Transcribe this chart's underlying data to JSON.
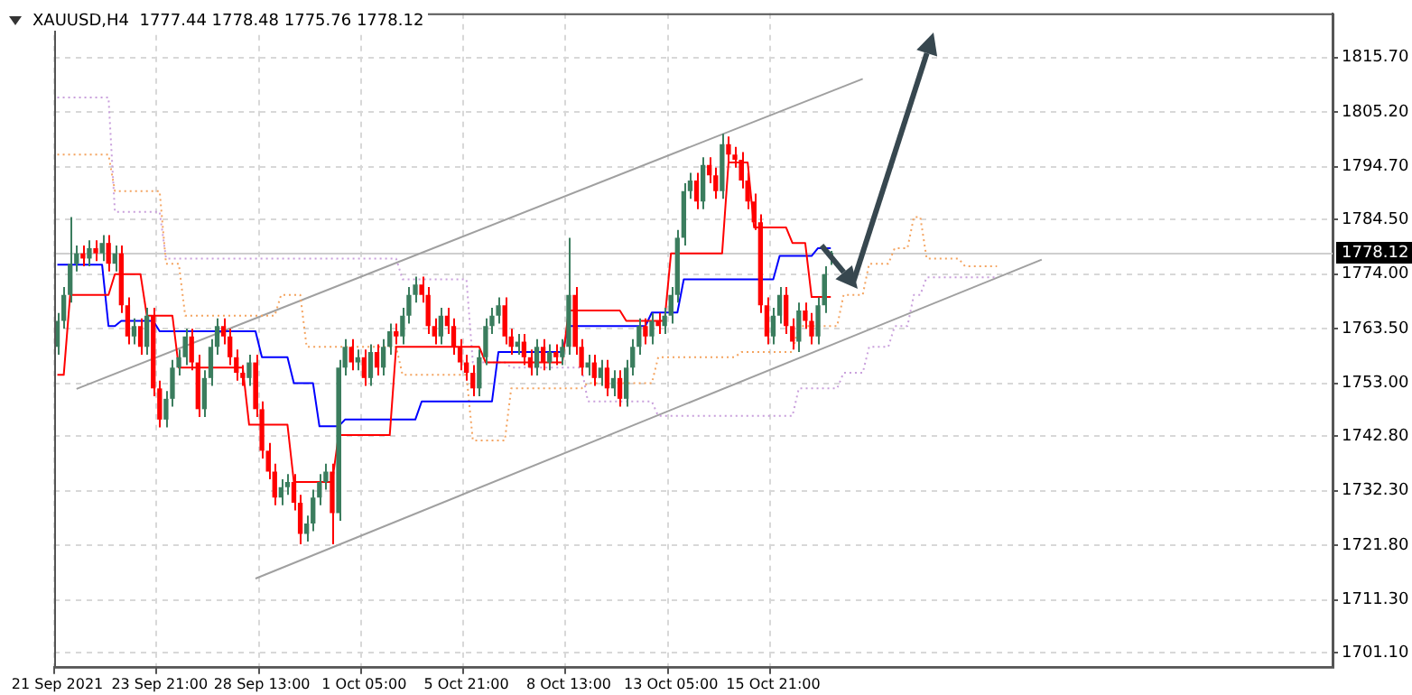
{
  "chart_data": {
    "type": "candlestick",
    "title": "XAUUSD,H4  1777.44 1778.48 1775.76 1778.12",
    "categories": [
      "21 Sep 2021",
      null,
      null,
      null,
      null,
      null,
      null,
      null,
      null,
      null,
      null,
      null,
      null,
      null,
      null,
      null,
      "23 Sep 21:00",
      null,
      null,
      null,
      null,
      null,
      null,
      null,
      null,
      null,
      null,
      null,
      null,
      null,
      null,
      null,
      "28 Sep 13:00",
      null,
      null,
      null,
      null,
      null,
      null,
      null,
      null,
      null,
      null,
      null,
      null,
      null,
      null,
      null,
      "1 Oct 05:00",
      null,
      null,
      null,
      null,
      null,
      null,
      null,
      null,
      null,
      null,
      null,
      null,
      null,
      null,
      null,
      "5 Oct 21:00",
      null,
      null,
      null,
      null,
      null,
      null,
      null,
      null,
      null,
      null,
      null,
      null,
      null,
      null,
      null,
      "8 Oct 13:00",
      null,
      null,
      null,
      null,
      null,
      null,
      null,
      null,
      null,
      null,
      null,
      null,
      null,
      null,
      null,
      "13 Oct 05:00",
      null,
      null,
      null,
      null,
      null,
      null,
      null,
      null,
      null,
      null,
      null,
      null,
      null,
      null,
      null,
      "15 Oct 21:00",
      null,
      null,
      null,
      null,
      null,
      null,
      null,
      null,
      null,
      null,
      null,
      null,
      null,
      null,
      null,
      null,
      null,
      null,
      null,
      null,
      null,
      null,
      null,
      null,
      null,
      null,
      null,
      null,
      null,
      null,
      null,
      null,
      null,
      null,
      null,
      null,
      null,
      null,
      null,
      null,
      null,
      null,
      null,
      null,
      null,
      null,
      null,
      null,
      null,
      null,
      null,
      null,
      null,
      null,
      null,
      null,
      null,
      null,
      null,
      null,
      null,
      null,
      null,
      null,
      null,
      null,
      null,
      null,
      null,
      null,
      null,
      null,
      null,
      null,
      null,
      null,
      null,
      null,
      null,
      null,
      null,
      null,
      null,
      null,
      null,
      null,
      null
    ],
    "ohlc": [
      [
        1760,
        1766.5,
        1758.5,
        1765
      ],
      [
        1765,
        1771.5,
        1763.5,
        1770
      ],
      [
        1770,
        1785,
        1768.5,
        1776
      ],
      [
        1776,
        1779.5,
        1774.5,
        1778
      ],
      [
        1778,
        1779.5,
        1775.5,
        1777
      ],
      [
        1777,
        1780.5,
        1775.5,
        1779
      ],
      [
        1779,
        1780.5,
        1776.5,
        1778
      ],
      [
        1778,
        1781.5,
        1776.5,
        1780
      ],
      [
        1780,
        1781.5,
        1774.5,
        1776
      ],
      [
        1776,
        1779.5,
        1774.5,
        1778
      ],
      [
        1778,
        1779.5,
        1766.5,
        1768
      ],
      [
        1768,
        1769.5,
        1760.5,
        1762
      ],
      [
        1762,
        1765.5,
        1760.5,
        1764
      ],
      [
        1764,
        1765.5,
        1758.5,
        1760
      ],
      [
        1760,
        1767.5,
        1758.5,
        1766
      ],
      [
        1766,
        1767.5,
        1750.5,
        1752
      ],
      [
        1752,
        1753.5,
        1744.5,
        1746
      ],
      [
        1746,
        1751.5,
        1744.5,
        1750
      ],
      [
        1750,
        1757.5,
        1748.5,
        1756
      ],
      [
        1756,
        1759.5,
        1754.5,
        1758
      ],
      [
        1758,
        1763.5,
        1756.5,
        1762
      ],
      [
        1762,
        1763.5,
        1755.5,
        1757
      ],
      [
        1757,
        1758.5,
        1746.5,
        1748
      ],
      [
        1748,
        1755.5,
        1746.5,
        1754
      ],
      [
        1754,
        1761.5,
        1752.5,
        1760
      ],
      [
        1760,
        1765.5,
        1758.5,
        1764
      ],
      [
        1764,
        1765.5,
        1760.5,
        1762
      ],
      [
        1762,
        1763.5,
        1756.5,
        1758
      ],
      [
        1758,
        1759.5,
        1753.5,
        1755
      ],
      [
        1755,
        1756.5,
        1752.5,
        1754
      ],
      [
        1754,
        1758.5,
        1752.5,
        1757
      ],
      [
        1757,
        1758.5,
        1746.5,
        1748
      ],
      [
        1748,
        1749.5,
        1738.5,
        1740
      ],
      [
        1740,
        1741.5,
        1734.5,
        1736
      ],
      [
        1736,
        1737.5,
        1729.5,
        1731
      ],
      [
        1731,
        1734.5,
        1729.5,
        1733
      ],
      [
        1733,
        1735.5,
        1731.5,
        1734
      ],
      [
        1734,
        1735.5,
        1728.5,
        1730
      ],
      [
        1730,
        1731.5,
        1722,
        1724
      ],
      [
        1724,
        1727.5,
        1722.5,
        1726
      ],
      [
        1726,
        1732.5,
        1724.5,
        1731
      ],
      [
        1731,
        1735.5,
        1729.5,
        1734
      ],
      [
        1734,
        1737.5,
        1732.5,
        1736
      ],
      [
        1736,
        1737.5,
        1722,
        1728
      ],
      [
        1728,
        1757.5,
        1726.5,
        1756
      ],
      [
        1756,
        1761.5,
        1754.5,
        1760
      ],
      [
        1760,
        1761.5,
        1755.5,
        1757
      ],
      [
        1757,
        1759.5,
        1755.5,
        1758
      ],
      [
        1758,
        1759.5,
        1752.5,
        1754
      ],
      [
        1754,
        1760.5,
        1752.5,
        1759
      ],
      [
        1759,
        1760.5,
        1754.5,
        1756
      ],
      [
        1756,
        1761.5,
        1754.5,
        1760
      ],
      [
        1760,
        1764.5,
        1758.5,
        1763
      ],
      [
        1763,
        1764.5,
        1760.5,
        1762
      ],
      [
        1762,
        1767.5,
        1760.5,
        1766
      ],
      [
        1766,
        1771.5,
        1764.5,
        1770
      ],
      [
        1770,
        1773.5,
        1768.5,
        1772
      ],
      [
        1772,
        1773.5,
        1768.5,
        1770
      ],
      [
        1770,
        1771.5,
        1762.5,
        1764
      ],
      [
        1764,
        1765.5,
        1760.5,
        1762
      ],
      [
        1762,
        1767.5,
        1760.5,
        1766
      ],
      [
        1766,
        1767.5,
        1762.5,
        1764
      ],
      [
        1764,
        1765.5,
        1758.5,
        1760
      ],
      [
        1760,
        1761.5,
        1755.5,
        1757
      ],
      [
        1757,
        1758.5,
        1753.5,
        1755
      ],
      [
        1755,
        1756.5,
        1750.5,
        1752
      ],
      [
        1752,
        1759.5,
        1750.5,
        1758
      ],
      [
        1758,
        1765.5,
        1756.5,
        1764
      ],
      [
        1764,
        1767.5,
        1762.5,
        1766
      ],
      [
        1766,
        1769.5,
        1764.5,
        1768
      ],
      [
        1768,
        1769.5,
        1760.5,
        1762
      ],
      [
        1762,
        1763.5,
        1758.5,
        1760
      ],
      [
        1760,
        1762.5,
        1758.5,
        1761
      ],
      [
        1761,
        1762.5,
        1756.5,
        1758
      ],
      [
        1758,
        1759.5,
        1754.5,
        1756
      ],
      [
        1756,
        1761.5,
        1754.5,
        1760
      ],
      [
        1760,
        1761.5,
        1755.5,
        1757
      ],
      [
        1757,
        1760.5,
        1755.5,
        1759
      ],
      [
        1759,
        1760.5,
        1756.5,
        1758
      ],
      [
        1758,
        1761.5,
        1756.5,
        1760
      ],
      [
        1760,
        1781,
        1758.5,
        1770
      ],
      [
        1770,
        1771.5,
        1758.5,
        1760
      ],
      [
        1760,
        1761.5,
        1754.5,
        1756
      ],
      [
        1756,
        1758.5,
        1754.5,
        1757
      ],
      [
        1757,
        1758.5,
        1752.5,
        1754
      ],
      [
        1754,
        1757.5,
        1752.5,
        1756
      ],
      [
        1756,
        1757.5,
        1750.5,
        1752
      ],
      [
        1752,
        1755.5,
        1750.5,
        1754
      ],
      [
        1754,
        1755.5,
        1748.5,
        1750
      ],
      [
        1750,
        1757.5,
        1748.5,
        1756
      ],
      [
        1756,
        1761.5,
        1754.5,
        1760
      ],
      [
        1760,
        1765.5,
        1758.5,
        1764
      ],
      [
        1764,
        1765.5,
        1760.5,
        1762
      ],
      [
        1762,
        1766.5,
        1760.5,
        1765
      ],
      [
        1765,
        1766.5,
        1762.5,
        1764
      ],
      [
        1764,
        1767.5,
        1762.5,
        1766
      ],
      [
        1766,
        1771.5,
        1764.5,
        1770
      ],
      [
        1770,
        1782.5,
        1768.5,
        1781
      ],
      [
        1781,
        1791.5,
        1779.5,
        1790
      ],
      [
        1790,
        1793.5,
        1788.5,
        1792
      ],
      [
        1792,
        1793.5,
        1786.5,
        1788
      ],
      [
        1788,
        1796.5,
        1786.5,
        1795
      ],
      [
        1795,
        1796.5,
        1791.5,
        1793
      ],
      [
        1793,
        1794.5,
        1788.5,
        1790
      ],
      [
        1790,
        1801,
        1788.5,
        1799
      ],
      [
        1799,
        1800.5,
        1795.5,
        1797
      ],
      [
        1797,
        1798.5,
        1794.5,
        1796
      ],
      [
        1796,
        1797.5,
        1790.5,
        1792
      ],
      [
        1792,
        1793.5,
        1786.5,
        1788
      ],
      [
        1788,
        1789.5,
        1782.5,
        1784
      ],
      [
        1784,
        1785.5,
        1766.5,
        1768
      ],
      [
        1768,
        1769.5,
        1760.5,
        1762
      ],
      [
        1762,
        1767.5,
        1760.5,
        1766
      ],
      [
        1766,
        1771.5,
        1764.5,
        1770
      ],
      [
        1770,
        1771.5,
        1762.5,
        1764
      ],
      [
        1764,
        1765.5,
        1759.5,
        1761
      ],
      [
        1761,
        1768.5,
        1759,
        1767
      ],
      [
        1767,
        1768.5,
        1763.5,
        1765
      ],
      [
        1765,
        1766.5,
        1760.5,
        1762
      ],
      [
        1762,
        1769.5,
        1760.5,
        1768
      ],
      [
        1768,
        1775.5,
        1766.5,
        1774
      ],
      [
        1777.44,
        1778.48,
        1775.76,
        1778.12
      ],
      null,
      null,
      null,
      null,
      null,
      null,
      null,
      null,
      null,
      null,
      null,
      null,
      null,
      null,
      null,
      null,
      null,
      null,
      null,
      null,
      null,
      null,
      null,
      null,
      null,
      null,
      null,
      null,
      null,
      null,
      null,
      null,
      null,
      null,
      null,
      null,
      null,
      null,
      null,
      null,
      null,
      null,
      null,
      null,
      null,
      null,
      null,
      null,
      null,
      null,
      null,
      null,
      null,
      null,
      null,
      null,
      null,
      null,
      null,
      null,
      null,
      null,
      null,
      null,
      null,
      null,
      null,
      null,
      null,
      null,
      null,
      null,
      null,
      null,
      null,
      null,
      null,
      null
    ],
    "colors": [
      "#3b7d5e",
      "#3b7d5e",
      "#3b7d5e",
      "#3b7d5e",
      "#ff0000",
      "#3b7d5e",
      "#ff0000",
      "#3b7d5e",
      "#ff0000",
      "#3b7d5e",
      "#ff0000",
      "#ff0000",
      "#3b7d5e",
      "#ff0000",
      "#3b7d5e",
      "#ff0000",
      "#ff0000",
      "#3b7d5e",
      "#3b7d5e",
      "#3b7d5e",
      "#3b7d5e",
      "#ff0000",
      "#ff0000",
      "#3b7d5e",
      "#3b7d5e",
      "#3b7d5e",
      "#ff0000",
      "#ff0000",
      "#ff0000",
      "#ff0000",
      "#3b7d5e",
      "#ff0000",
      "#ff0000",
      "#ff0000",
      "#ff0000",
      "#3b7d5e",
      "#3b7d5e",
      "#ff0000",
      "#ff0000",
      "#3b7d5e",
      "#3b7d5e",
      "#3b7d5e",
      "#3b7d5e",
      "#ff0000",
      "#3b7d5e",
      "#3b7d5e",
      "#ff0000",
      "#3b7d5e",
      "#ff0000",
      "#3b7d5e",
      "#ff0000",
      "#3b7d5e",
      "#3b7d5e",
      "#ff0000",
      "#3b7d5e",
      "#3b7d5e",
      "#3b7d5e",
      "#ff0000",
      "#ff0000",
      "#ff0000",
      "#3b7d5e",
      "#ff0000",
      "#ff0000",
      "#ff0000",
      "#ff0000",
      "#ff0000",
      "#3b7d5e",
      "#3b7d5e",
      "#3b7d5e",
      "#3b7d5e",
      "#ff0000",
      "#ff0000",
      "#3b7d5e",
      "#ff0000",
      "#ff0000",
      "#3b7d5e",
      "#ff0000",
      "#3b7d5e",
      "#ff0000",
      "#3b7d5e",
      "#3b7d5e",
      "#ff0000",
      "#ff0000",
      "#3b7d5e",
      "#ff0000",
      "#3b7d5e",
      "#ff0000",
      "#3b7d5e",
      "#ff0000",
      "#3b7d5e",
      "#3b7d5e",
      "#3b7d5e",
      "#ff0000",
      "#3b7d5e",
      "#ff0000",
      "#3b7d5e",
      "#3b7d5e",
      "#3b7d5e",
      "#3b7d5e",
      "#3b7d5e",
      "#ff0000",
      "#3b7d5e",
      "#ff0000",
      "#ff0000",
      "#3b7d5e",
      "#ff0000",
      "#ff0000",
      "#ff0000",
      "#ff0000",
      "#ff0000",
      "#ff0000",
      "#ff0000",
      "#3b7d5e",
      "#3b7d5e",
      "#ff0000",
      "#ff0000",
      "#3b7d5e",
      "#ff0000",
      "#ff0000",
      "#3b7d5e",
      "#3b7d5e",
      "#3b7d5e",
      null,
      null,
      null,
      null,
      null,
      null,
      null,
      null,
      null,
      null,
      null,
      null,
      null,
      null,
      null,
      null,
      null,
      null,
      null,
      null,
      null,
      null,
      null,
      null,
      null,
      null,
      null,
      null,
      null,
      null,
      null,
      null,
      null,
      null,
      null,
      null,
      null,
      null,
      null,
      null,
      null,
      null,
      null,
      null,
      null,
      null,
      null,
      null,
      null,
      null,
      null,
      null,
      null,
      null,
      null,
      null,
      null,
      null,
      null,
      null,
      null,
      null,
      null,
      null,
      null,
      null,
      null,
      null,
      null,
      null,
      null,
      null,
      null,
      null,
      null,
      null,
      null,
      null
    ],
    "series": [
      {
        "type": "line",
        "color": "#ff0000",
        "values": [
          1754.6,
          1754.6,
          1770,
          1770,
          1770,
          1770,
          1770,
          1770,
          1770,
          1774,
          1774,
          1774,
          1774,
          1774,
          1766,
          1766,
          1766,
          1766,
          1766,
          1756,
          1756,
          1756,
          1756,
          1756,
          1756,
          1756,
          1756,
          1756,
          1756,
          1756,
          1745,
          1745,
          1745,
          1745,
          1745,
          1745,
          1745,
          1734,
          1734,
          1734,
          1734,
          1734,
          1734,
          1734,
          1743,
          1743,
          1743,
          1743,
          1743,
          1743,
          1743,
          1743,
          1743,
          1760,
          1760,
          1760,
          1760,
          1760,
          1760,
          1760,
          1760,
          1760,
          1760,
          1760,
          1760,
          1760,
          1760,
          1757,
          1757,
          1757,
          1757,
          1757,
          1757,
          1757,
          1757,
          1757,
          1757,
          1757,
          1757,
          1757,
          1767,
          1767,
          1767,
          1767,
          1767,
          1767,
          1767,
          1767,
          1767,
          1765,
          1765,
          1765,
          1765,
          1765,
          1765,
          1765,
          1778,
          1778,
          1778,
          1778,
          1778,
          1778,
          1778,
          1778,
          1778,
          1795.5,
          1795.5,
          1795.5,
          1795.5,
          1783,
          1783,
          1783,
          1783,
          1783,
          1783,
          1780,
          1780,
          1780,
          1769.6,
          1769.6,
          1769.6,
          1769.6,
          null,
          null,
          null,
          null,
          null,
          null,
          null,
          null,
          null,
          null,
          null,
          null,
          null,
          null,
          null,
          null,
          null,
          null,
          null,
          null,
          null,
          null,
          null,
          null,
          null,
          null,
          null,
          null,
          null,
          null,
          null,
          null,
          null,
          null,
          null,
          null,
          null,
          null,
          null,
          null,
          null,
          null,
          null,
          null,
          null,
          null,
          null,
          null,
          null,
          null,
          null,
          null,
          null,
          null,
          null,
          null,
          null,
          null,
          null,
          null,
          null,
          null,
          null,
          null,
          null,
          null,
          null,
          null,
          null,
          null,
          null,
          null,
          null,
          null,
          null,
          null,
          null,
          null
        ]
      },
      {
        "type": "line",
        "color": "#0000ff",
        "values": [
          1775.8,
          1775.8,
          1775.8,
          1775.8,
          1775.8,
          1775.8,
          1775.8,
          1775.8,
          1764,
          1764,
          1765,
          1765,
          1765,
          1765,
          1765,
          1765,
          1763,
          1763,
          1763,
          1763,
          1763,
          1763,
          1763,
          1763,
          1763,
          1763,
          1763,
          1763,
          1763,
          1763,
          1763,
          1763,
          1758,
          1758,
          1758,
          1758,
          1758,
          1753,
          1753,
          1753,
          1753,
          1744.7,
          1744.7,
          1744.7,
          1744.7,
          1746,
          1746,
          1746,
          1746,
          1746,
          1746,
          1746,
          1746,
          1746,
          1746,
          1746,
          1746,
          1749.5,
          1749.5,
          1749.5,
          1749.5,
          1749.5,
          1749.5,
          1749.5,
          1749.5,
          1749.5,
          1749.5,
          1749.5,
          1749.5,
          1759,
          1759,
          1759,
          1759,
          1759,
          1759,
          1759,
          1759,
          1759,
          1759,
          1759,
          1764,
          1764,
          1764,
          1764,
          1764,
          1764,
          1764,
          1764,
          1764,
          1764,
          1764,
          1764,
          1764,
          1766.6,
          1766.6,
          1766.6,
          1766.6,
          1766.6,
          1773,
          1773,
          1773,
          1773,
          1773,
          1773,
          1773,
          1773,
          1773,
          1773,
          1773,
          1773,
          1773,
          1773,
          1773,
          1777.5,
          1777.5,
          1777.5,
          1777.5,
          1777.5,
          1777.5,
          1779,
          1779,
          1779,
          null,
          null,
          null,
          null,
          null,
          null,
          null,
          null,
          null,
          null,
          null,
          null,
          null,
          null,
          null,
          null,
          null,
          null,
          null,
          null,
          null,
          null,
          null,
          null,
          null,
          null,
          null,
          null,
          null,
          null,
          null,
          null,
          null,
          null,
          null,
          null,
          null,
          null,
          null,
          null,
          null,
          null,
          null,
          null,
          null,
          null,
          null,
          null,
          null,
          null,
          null,
          null,
          null,
          null,
          null,
          null,
          null,
          null,
          null,
          null,
          null,
          null,
          null,
          null,
          null,
          null,
          null,
          null,
          null,
          null,
          null,
          null,
          null,
          null,
          null,
          null,
          null,
          null
        ]
      },
      {
        "type": "line",
        "color": "#f4a460",
        "line_style": "dotted",
        "values": [
          1797,
          1797,
          1797,
          1797,
          1797,
          1797,
          1797,
          1797,
          1797,
          1790,
          1790,
          1790,
          1790,
          1790,
          1790,
          1790,
          1790,
          1776,
          1776,
          1776,
          1766,
          1766,
          1766,
          1766,
          1766,
          1766,
          1766,
          1766,
          1766,
          1766,
          1766,
          1766,
          1766,
          1766,
          1766,
          1770,
          1770,
          1770,
          1770,
          1760,
          1760,
          1760,
          1760,
          1760,
          1760,
          1760,
          1760,
          1760,
          1760,
          1760,
          1760,
          1760,
          1760,
          1760,
          1754.6,
          1754.6,
          1754.6,
          1754.6,
          1754.6,
          1754.6,
          1754.6,
          1754.6,
          1754.6,
          1754.6,
          1754.6,
          1742,
          1742,
          1742,
          1742,
          1742,
          1742,
          1752,
          1752,
          1752,
          1752,
          1752,
          1752,
          1752,
          1752,
          1752,
          1752,
          1752,
          1752,
          1753,
          1753,
          1753,
          1753,
          1753,
          1753,
          1753,
          1753,
          1753,
          1753,
          1753,
          1758,
          1758,
          1758,
          1758,
          1758,
          1758,
          1758,
          1758,
          1758,
          1758,
          1758,
          1758,
          1758,
          1759,
          1759,
          1759,
          1759,
          1759,
          1759,
          1759,
          1759,
          1759,
          1764,
          1764,
          1764,
          1764,
          1764,
          1764,
          1764,
          1770,
          1770,
          1770,
          1770,
          1776,
          1776,
          1776,
          1776,
          1779,
          1779,
          1779,
          1785,
          1785,
          1777,
          1777,
          1777,
          1777,
          1777,
          1777,
          1775.5,
          1775.5,
          1775.5,
          1775.5,
          1775.5,
          1775.5,
          null,
          null,
          null,
          null,
          null,
          null,
          null,
          null,
          null,
          null,
          null,
          null,
          null,
          null,
          null,
          null,
          null,
          null,
          null,
          null,
          null,
          null,
          null,
          null,
          null,
          null,
          null,
          null,
          null,
          null,
          null,
          null,
          null,
          null,
          null,
          null,
          null,
          null,
          null,
          null,
          null,
          null,
          null,
          null,
          null,
          null,
          null,
          null,
          null,
          null,
          null,
          null
        ]
      },
      {
        "type": "line",
        "color": "#c9a0dc",
        "line_style": "dotted",
        "values": [
          1808,
          1808,
          1808,
          1808,
          1808,
          1808,
          1808,
          1808,
          1808,
          1786,
          1786,
          1786,
          1786,
          1786,
          1786,
          1786,
          1786,
          1777,
          1777,
          1777,
          1777,
          1777,
          1777,
          1777,
          1777,
          1777,
          1777,
          1777,
          1777,
          1777,
          1777,
          1777,
          1777,
          1777,
          1777,
          1777,
          1777,
          1777,
          1777,
          1777,
          1777,
          1777,
          1777,
          1777,
          1777,
          1777,
          1777,
          1777,
          1777,
          1777,
          1777,
          1777,
          1777,
          1777,
          1773,
          1773,
          1773,
          1773,
          1773,
          1773,
          1773,
          1773,
          1773,
          1773,
          1773,
          1757,
          1757,
          1757,
          1757,
          1757,
          1757,
          1756,
          1756,
          1756,
          1756,
          1756,
          1756,
          1756,
          1756,
          1756,
          1756,
          1756,
          1756,
          1749.5,
          1749.5,
          1749.5,
          1749.5,
          1749.5,
          1749.5,
          1749.5,
          1749.5,
          1749.5,
          1749.5,
          1749.5,
          1746.7,
          1746.7,
          1746.7,
          1746.7,
          1746.7,
          1746.7,
          1746.7,
          1746.7,
          1746.7,
          1746.7,
          1746.7,
          1746.7,
          1746.7,
          1746.7,
          1746.7,
          1746.7,
          1746.7,
          1746.7,
          1746.7,
          1746.7,
          1746.7,
          1746.7,
          1752,
          1752,
          1752,
          1752,
          1752,
          1752,
          1752,
          1755,
          1755,
          1755,
          1755,
          1760,
          1760,
          1760,
          1760,
          1764,
          1764,
          1764,
          1770,
          1770,
          1773.4,
          1773.4,
          1773.4,
          1773.4,
          1773.4,
          1773.4,
          1773.4,
          1773.4,
          1773.4,
          1773.4,
          1773.4,
          1773.4,
          null,
          null,
          null,
          null,
          null,
          null,
          null,
          null,
          null,
          null,
          null,
          null,
          null,
          null,
          null,
          null,
          null,
          null,
          null,
          null,
          null,
          null,
          null,
          null,
          null,
          null,
          null,
          null,
          null,
          null,
          null,
          null,
          null,
          null,
          null,
          null,
          null,
          null,
          null,
          null,
          null,
          null,
          null,
          null,
          null,
          null,
          null,
          null,
          null,
          null,
          null,
          null
        ]
      },
      {
        "type": "line",
        "color": "#a0a0a0",
        "values": [
          null,
          null,
          null,
          1751.9,
          null,
          null,
          null,
          null,
          null,
          null,
          null,
          null,
          null,
          null,
          null,
          null,
          null,
          null,
          null,
          null,
          null,
          null,
          null,
          null,
          null,
          null,
          null,
          null,
          null,
          null,
          null,
          null,
          null,
          null,
          null,
          null,
          null,
          null,
          null,
          null,
          null,
          null,
          null,
          null,
          null,
          null,
          null,
          null,
          null,
          null,
          null,
          null,
          null,
          null,
          null,
          null,
          null,
          null,
          null,
          null,
          null,
          null,
          null,
          null,
          null,
          null,
          null,
          null,
          null,
          null,
          null,
          null,
          null,
          null,
          null,
          null,
          null,
          null,
          null,
          null,
          null,
          null,
          null,
          null,
          null,
          null,
          null,
          null,
          null,
          null,
          null,
          null,
          null,
          null,
          null,
          null,
          null,
          null,
          null,
          null,
          null,
          null,
          null,
          null,
          null,
          null,
          null,
          null,
          null,
          null,
          null,
          null,
          null,
          null,
          null,
          null,
          null,
          null,
          null,
          null,
          null,
          null,
          null,
          null,
          null,
          null,
          1811.6,
          null,
          null,
          null,
          null,
          null,
          null,
          null,
          null,
          null,
          null,
          null,
          null,
          null,
          null,
          null,
          null,
          null,
          null,
          null,
          null,
          null,
          null,
          null,
          null,
          null,
          null,
          null,
          null,
          null,
          null,
          null,
          null,
          null,
          null,
          null,
          null,
          null,
          null,
          null,
          null,
          null,
          null,
          null,
          null,
          null,
          null,
          null,
          null,
          null,
          null,
          null,
          null,
          null,
          null,
          null,
          null,
          null,
          null,
          null,
          null,
          null,
          null,
          null,
          null,
          null,
          null,
          null,
          null,
          null,
          null,
          null,
          null,
          null
        ]
      },
      {
        "type": "line",
        "color": "#a0a0a0",
        "values": [
          null,
          null,
          null,
          null,
          null,
          null,
          null,
          null,
          null,
          null,
          null,
          null,
          null,
          null,
          null,
          null,
          null,
          null,
          null,
          null,
          null,
          null,
          null,
          null,
          null,
          null,
          null,
          null,
          null,
          null,
          null,
          1715.4,
          null,
          null,
          null,
          null,
          null,
          null,
          null,
          null,
          null,
          null,
          null,
          null,
          null,
          null,
          null,
          null,
          null,
          null,
          null,
          null,
          null,
          null,
          null,
          null,
          null,
          null,
          null,
          null,
          null,
          null,
          null,
          null,
          null,
          null,
          null,
          null,
          null,
          null,
          null,
          null,
          null,
          null,
          null,
          null,
          null,
          null,
          null,
          null,
          null,
          null,
          null,
          null,
          null,
          null,
          null,
          null,
          null,
          null,
          null,
          null,
          null,
          null,
          null,
          null,
          null,
          null,
          null,
          null,
          null,
          null,
          null,
          null,
          null,
          null,
          null,
          null,
          null,
          null,
          null,
          null,
          null,
          null,
          null,
          null,
          null,
          null,
          null,
          null,
          null,
          null,
          null,
          null,
          null,
          null,
          null,
          null,
          null,
          null,
          null,
          null,
          null,
          null,
          null,
          null,
          null,
          null,
          null,
          null,
          null,
          null,
          null,
          null,
          null,
          null,
          null,
          null,
          null,
          null,
          null,
          null,
          null,
          null,
          1776.8,
          null,
          null,
          null,
          null,
          null,
          null,
          null,
          null,
          null,
          null,
          null,
          null,
          null,
          null,
          null,
          null,
          null,
          null,
          null,
          null,
          null,
          null,
          null,
          null,
          null,
          null,
          null,
          null,
          null,
          null,
          null,
          null,
          null,
          null,
          null,
          null,
          null,
          null,
          null,
          null,
          null,
          null,
          null,
          null,
          null
        ]
      }
    ],
    "ylim": [
      1698.4,
      1824.2
    ],
    "yticks": [
      {
        "value": 1701.1,
        "label": "1701.10"
      },
      {
        "value": 1711.3,
        "label": "1711.30"
      },
      {
        "value": 1721.8,
        "label": "1721.80"
      },
      {
        "value": 1732.3,
        "label": "1732.30"
      },
      {
        "value": 1742.8,
        "label": "1742.80"
      },
      {
        "value": 1753,
        "label": "1753.00"
      },
      {
        "value": 1763.5,
        "label": "1763.50"
      },
      {
        "value": 1774,
        "label": "1774.00"
      },
      {
        "value": 1784.5,
        "label": "1784.50"
      },
      {
        "value": 1794.7,
        "label": "1794.70"
      },
      {
        "value": 1805.2,
        "label": "1805.20"
      },
      {
        "value": 1815.7,
        "label": "1815.70"
      }
    ],
    "ref_lines": [
      {
        "axis": "y",
        "value": 1778.12,
        "label": "1778.12",
        "color": "#cfcfcf"
      }
    ],
    "grid": true
  }
}
